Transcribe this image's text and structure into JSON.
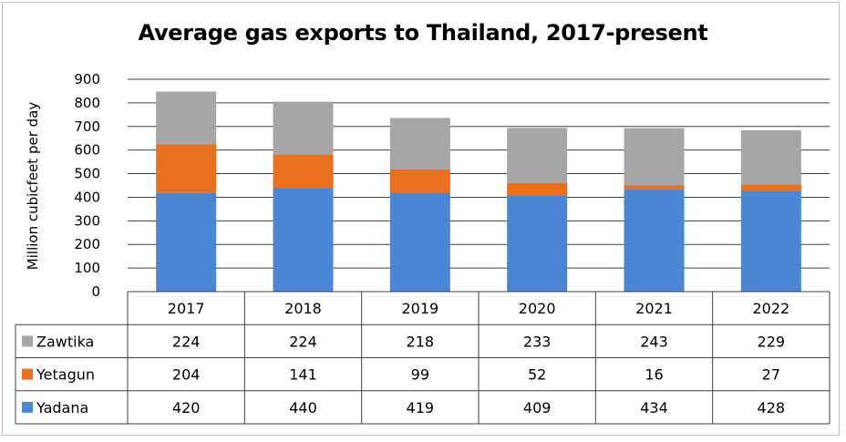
{
  "chart_data": {
    "type": "bar",
    "stacked": true,
    "title": "Average gas exports to Thailand, 2017-present",
    "xlabel": "",
    "ylabel": "Million cubicfeet per day",
    "categories": [
      "2017",
      "2018",
      "2019",
      "2020",
      "2021",
      "2022"
    ],
    "yticks": [
      "0",
      "100",
      "200",
      "300",
      "400",
      "500",
      "600",
      "700",
      "800",
      "900"
    ],
    "ylim": [
      0,
      900
    ],
    "grid": true,
    "legend": "data-table-left",
    "series": [
      {
        "name": "Yadana",
        "color": "#4a86d4",
        "values": [
          420,
          440,
          419,
          409,
          434,
          428
        ]
      },
      {
        "name": "Yetagun",
        "color": "#e8701e",
        "values": [
          204,
          141,
          99,
          52,
          16,
          27
        ]
      },
      {
        "name": "Zawtika",
        "color": "#a6a6a6",
        "values": [
          224,
          224,
          218,
          233,
          243,
          229
        ]
      }
    ]
  }
}
